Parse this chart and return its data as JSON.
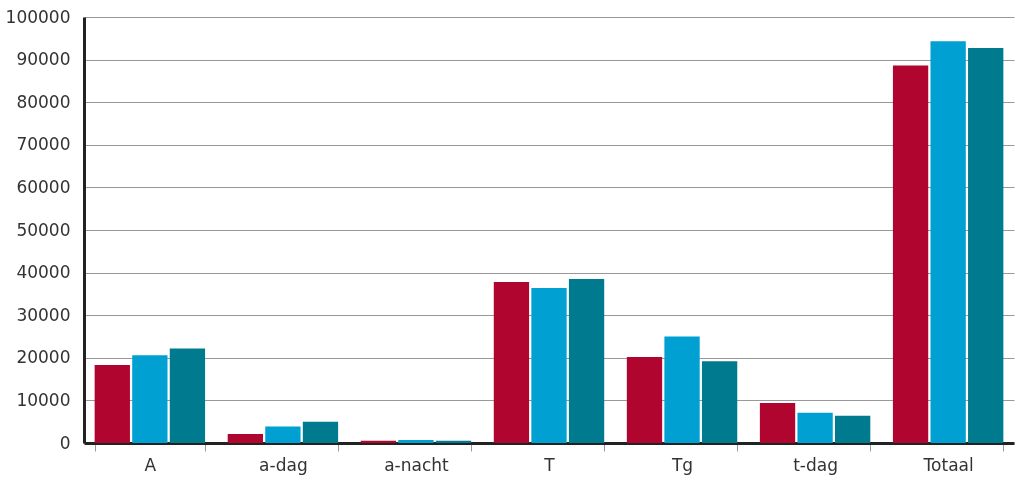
{
  "chart_data": {
    "type": "bar",
    "categories": [
      "A",
      "a-dag",
      "a-nacht",
      "T",
      "Tg",
      "t-dag",
      "Totaal"
    ],
    "series": [
      {
        "color": "#b0052f",
        "values": [
          18300,
          2100,
          500,
          37800,
          20200,
          9400,
          88600
        ]
      },
      {
        "color": "#00a0d2",
        "values": [
          20600,
          3900,
          700,
          36400,
          25000,
          7100,
          94300
        ]
      },
      {
        "color": "#007a8e",
        "values": [
          22200,
          5000,
          500,
          38500,
          19200,
          6400,
          92700
        ]
      }
    ],
    "ylim": [
      0,
      100000
    ],
    "yticks": [
      0,
      10000,
      20000,
      30000,
      40000,
      50000,
      60000,
      70000,
      80000,
      90000,
      100000
    ],
    "grid": "y",
    "legend": false
  }
}
